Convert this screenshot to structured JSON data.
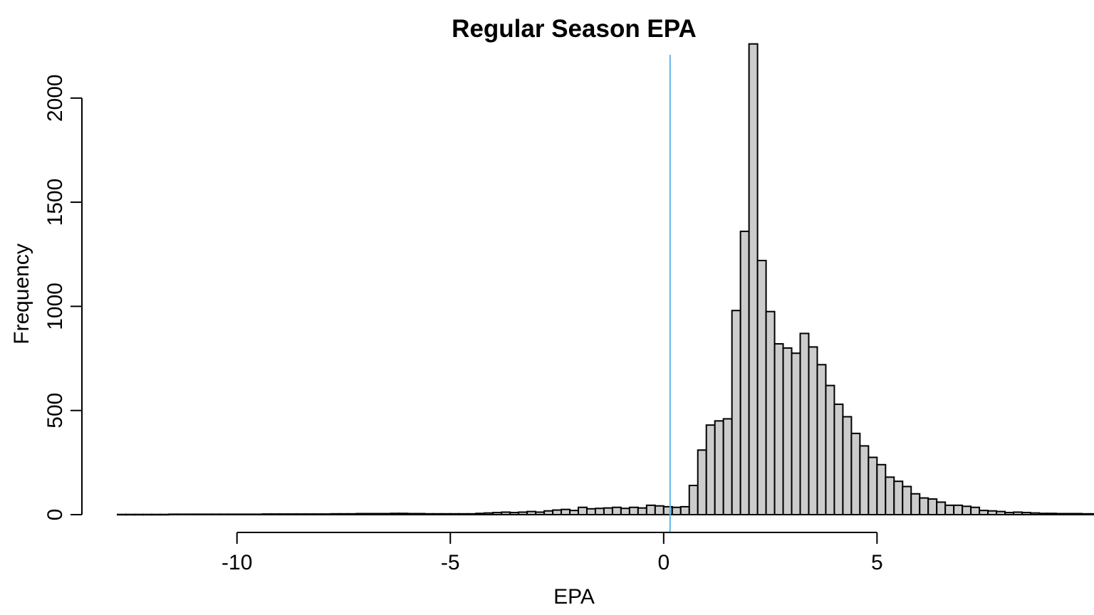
{
  "chart_data": {
    "type": "bar",
    "title": "Regular Season EPA",
    "xlabel": "EPA",
    "ylabel": "Frequency",
    "xlim": [
      -12.8,
      8.6
    ],
    "ylim": [
      0,
      2300
    ],
    "bin_start": -12.8,
    "bin_width": 0.2,
    "values": [
      1,
      1,
      1,
      1,
      1,
      1,
      2,
      2,
      2,
      2,
      2,
      2,
      2,
      2,
      2,
      2,
      2,
      3,
      3,
      3,
      3,
      3,
      3,
      3,
      3,
      4,
      4,
      4,
      5,
      5,
      5,
      5,
      6,
      6,
      5,
      5,
      4,
      4,
      4,
      4,
      4,
      4,
      6,
      8,
      10,
      12,
      10,
      12,
      15,
      12,
      18,
      22,
      25,
      20,
      35,
      28,
      30,
      32,
      35,
      30,
      35,
      32,
      45,
      42,
      38,
      35,
      38,
      140,
      310,
      430,
      450,
      460,
      980,
      1360,
      2260,
      1220,
      975,
      820,
      800,
      775,
      870,
      805,
      720,
      620,
      530,
      470,
      390,
      330,
      275,
      240,
      180,
      160,
      135,
      100,
      80,
      75,
      60,
      45,
      45,
      40,
      35,
      20,
      18,
      15,
      10,
      12,
      10,
      8,
      6,
      6,
      5,
      5,
      5,
      4,
      4,
      3,
      3,
      2,
      2,
      2,
      2
    ],
    "xticks": [
      -10,
      -5,
      0,
      5
    ],
    "xtick_labels": [
      "-10",
      "-5",
      "0",
      "5"
    ],
    "yticks": [
      0,
      500,
      1000,
      1500,
      2000
    ],
    "ytick_labels": [
      "0",
      "500",
      "1000",
      "1500",
      "2000"
    ],
    "reference_line": {
      "x": 0.15
    },
    "grid": false,
    "legend": "none",
    "colors": {
      "bar_fill": "#cccccc",
      "bar_edge": "#000000",
      "reference_line": "#5fb4e6"
    }
  }
}
